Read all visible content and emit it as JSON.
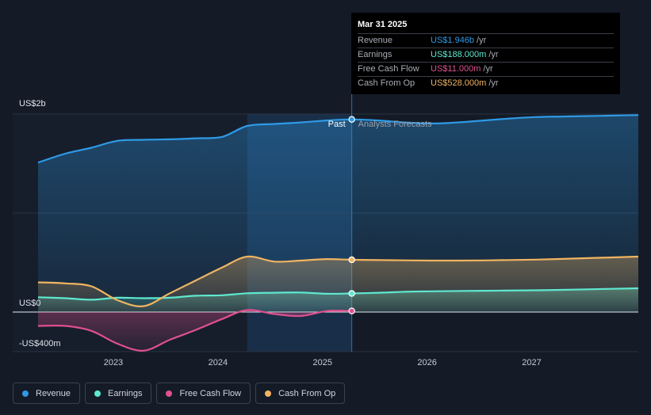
{
  "tooltip": {
    "date": "Mar 31 2025",
    "rows": [
      {
        "label": "Revenue",
        "value": "US$1.946b",
        "unit": "/yr",
        "color": "#2f9ae6"
      },
      {
        "label": "Earnings",
        "value": "US$188.000m",
        "unit": "/yr",
        "color": "#5ee8cf"
      },
      {
        "label": "Free Cash Flow",
        "value": "US$11.000m",
        "unit": "/yr",
        "color": "#e0508f"
      },
      {
        "label": "Cash From Op",
        "value": "US$528.000m",
        "unit": "/yr",
        "color": "#f0b461"
      }
    ]
  },
  "labels": {
    "past": "Past",
    "forecast": "Analysts Forecasts"
  },
  "legend": [
    {
      "label": "Revenue",
      "color": "#2f9ae6"
    },
    {
      "label": "Earnings",
      "color": "#5ee8cf"
    },
    {
      "label": "Free Cash Flow",
      "color": "#e0508f"
    },
    {
      "label": "Cash From Op",
      "color": "#f0b461"
    }
  ],
  "chart_data": {
    "type": "line",
    "y_tick_labels": [
      "US$2b",
      "US$0",
      "-US$400m"
    ],
    "x_tick_labels": [
      "2023",
      "2024",
      "2025",
      "2026",
      "2027"
    ],
    "ylim": [
      -400,
      2000
    ],
    "xlim": [
      2022.24,
      2027.98
    ],
    "divider_x": 2025.24,
    "shaded_past_start": 2024.24,
    "series": [
      {
        "name": "Revenue",
        "color": "#2f9ae6",
        "x": [
          2022.24,
          2022.5,
          2022.75,
          2023.0,
          2023.25,
          2023.5,
          2023.75,
          2024.0,
          2024.24,
          2024.5,
          2024.75,
          2025.0,
          2025.24,
          2025.5,
          2025.75,
          2026.0,
          2026.25,
          2026.5,
          2026.75,
          2027.0,
          2027.25,
          2027.5,
          2027.75,
          2027.98
        ],
        "values": [
          1510,
          1600,
          1660,
          1730,
          1740,
          1745,
          1755,
          1770,
          1880,
          1900,
          1915,
          1935,
          1946,
          1935,
          1915,
          1905,
          1915,
          1935,
          1955,
          1970,
          1975,
          1980,
          1985,
          1990
        ]
      },
      {
        "name": "Earnings",
        "color": "#5ee8cf",
        "x": [
          2022.24,
          2022.5,
          2022.75,
          2023.0,
          2023.25,
          2023.5,
          2023.75,
          2024.0,
          2024.24,
          2024.5,
          2024.75,
          2025.0,
          2025.24,
          2025.5,
          2025.75,
          2026.0,
          2026.5,
          2027.0,
          2027.5,
          2027.98
        ],
        "values": [
          150,
          140,
          125,
          145,
          140,
          145,
          165,
          170,
          190,
          195,
          198,
          185,
          188,
          195,
          205,
          210,
          215,
          220,
          230,
          240
        ]
      },
      {
        "name": "Free Cash Flow",
        "color": "#e0508f",
        "x": [
          2022.24,
          2022.5,
          2022.75,
          2023.0,
          2023.25,
          2023.5,
          2023.75,
          2024.0,
          2024.24,
          2024.5,
          2024.75,
          2025.0,
          2025.24
        ],
        "values": [
          -140,
          -140,
          -190,
          -320,
          -390,
          -280,
          -180,
          -70,
          20,
          -20,
          -40,
          10,
          11
        ]
      },
      {
        "name": "Cash From Op",
        "color": "#f0b461",
        "x": [
          2022.24,
          2022.5,
          2022.75,
          2023.0,
          2023.25,
          2023.5,
          2023.75,
          2024.0,
          2024.24,
          2024.5,
          2024.75,
          2025.0,
          2025.24,
          2025.5,
          2026.0,
          2026.5,
          2027.0,
          2027.5,
          2027.98
        ],
        "values": [
          300,
          290,
          260,
          120,
          60,
          190,
          320,
          450,
          560,
          510,
          520,
          535,
          528,
          525,
          520,
          522,
          530,
          545,
          560
        ]
      }
    ],
    "highlight_x": 2025.24,
    "grid": true
  }
}
